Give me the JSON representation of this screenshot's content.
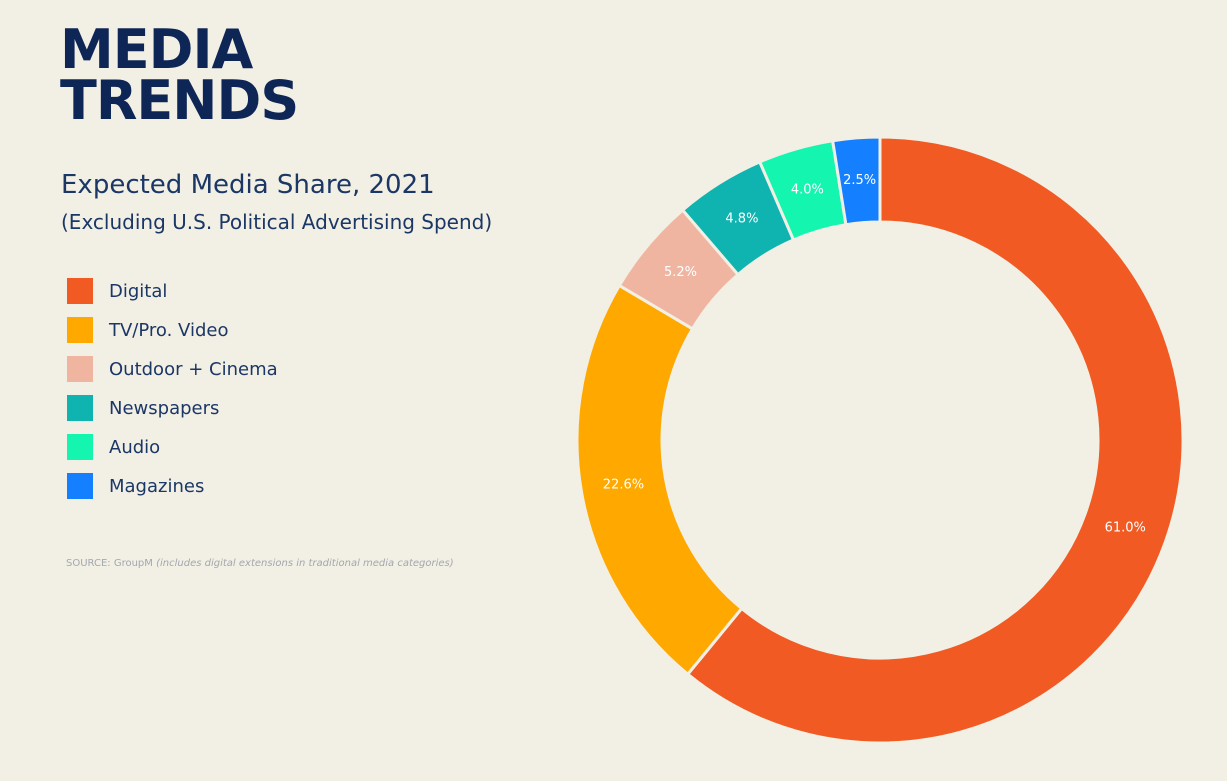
{
  "header": {
    "hero_line1": "MEDIA",
    "hero_line2": "TRENDS",
    "subtitle": "Expected Media Share, 2021",
    "subtitle2": "(Excluding U.S. Political Advertising Spend)"
  },
  "source": {
    "prefix": "SOURCE: GroupM",
    "note": "(includes digital extensions in traditional media categories)"
  },
  "chart_data": {
    "type": "pie",
    "donut": true,
    "categories": [
      "Digital",
      "TV/Pro. Video",
      "Outdoor + Cinema",
      "Newspapers",
      "Audio",
      "Magazines"
    ],
    "values": [
      61.0,
      22.6,
      5.2,
      4.8,
      4.0,
      2.5
    ],
    "data_labels": [
      "61.0%",
      "22.6%",
      "5.2%",
      "4.8%",
      "4.0%",
      "2.5%"
    ],
    "colors": [
      "#F15A22",
      "#FFA800",
      "#F0B5A1",
      "#0FB3AF",
      "#14F5B0",
      "#1480FF"
    ],
    "legend_position": "left"
  }
}
